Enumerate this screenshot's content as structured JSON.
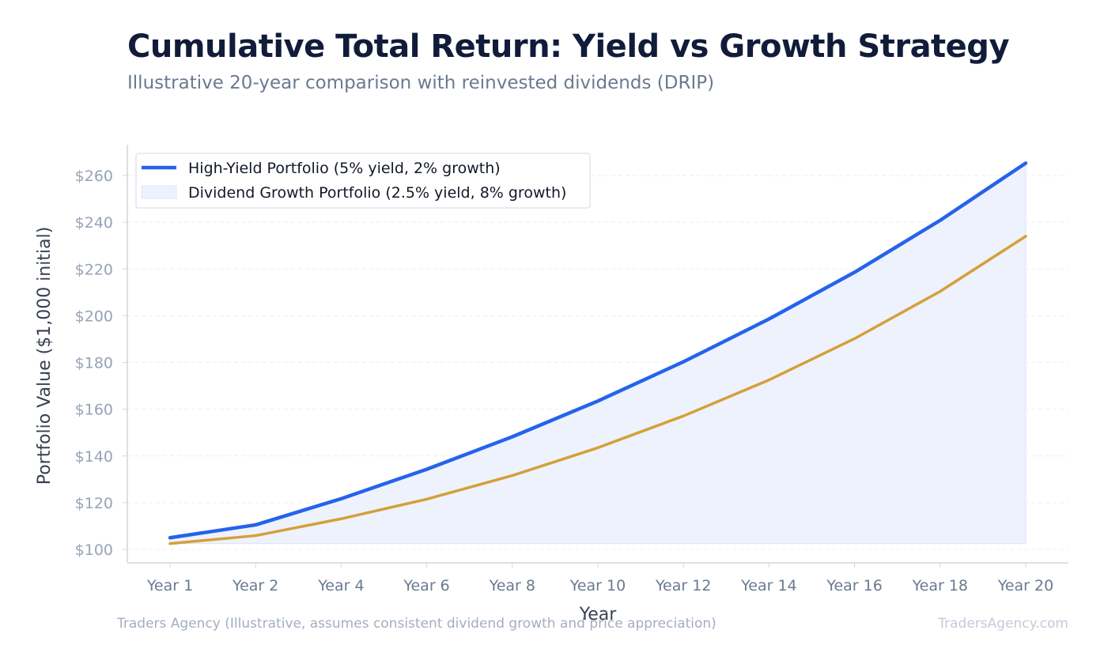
{
  "header": {
    "title": "Cumulative Total Return: Yield vs Growth Strategy",
    "subtitle": "Illustrative 20-year comparison with reinvested dividends (DRIP)"
  },
  "footer": {
    "source": "Traders Agency (Illustrative, assumes consistent dividend growth and price appreciation)",
    "brand": "TradersAgency.com"
  },
  "colors": {
    "series_high_yield": "#2563eb",
    "series_dividend_growth": "#d4a03a",
    "fill_between": "#eef2fd",
    "axis": "#cfd6e0",
    "grid": "#e9edf3",
    "ytick_text": "#97a3b6",
    "xtick_text": "#6b7a90",
    "axis_label_text": "#374151"
  },
  "chart_data": {
    "type": "line",
    "title": "Cumulative Total Return: Yield vs Growth Strategy",
    "subtitle": "Illustrative 20-year comparison with reinvested dividends (DRIP)",
    "xlabel": "Year",
    "ylabel": "Portfolio Value ($1,000 initial)",
    "categories": [
      "Year 1",
      "Year 2",
      "Year 4",
      "Year 6",
      "Year 8",
      "Year 10",
      "Year 12",
      "Year 14",
      "Year 16",
      "Year 18",
      "Year 20"
    ],
    "ylim": [
      97,
      273
    ],
    "yticks": [
      100,
      120,
      140,
      160,
      180,
      200,
      220,
      240,
      260
    ],
    "ytick_labels": [
      "$100",
      "$120",
      "$140",
      "$160",
      "$180",
      "$200",
      "$220",
      "$240",
      "$260"
    ],
    "grid": true,
    "legend_position": "top-left",
    "series": [
      {
        "name": "High-Yield Portfolio (5% yield, 2% growth)",
        "color": "#2563eb",
        "legend_marker": "line",
        "values": [
          105,
          110.5,
          121.7,
          134.3,
          148.2,
          163.5,
          180.3,
          198.6,
          218.6,
          240.8,
          265.3
        ]
      },
      {
        "name": "Dividend Growth Portfolio (2.5% yield, 8% growth)",
        "color": "#d4a03a",
        "legend_marker": "fill",
        "values": [
          102.5,
          105.9,
          113.1,
          121.5,
          131.6,
          143.5,
          157.1,
          172.5,
          190.2,
          210.4,
          234.0
        ]
      }
    ]
  }
}
